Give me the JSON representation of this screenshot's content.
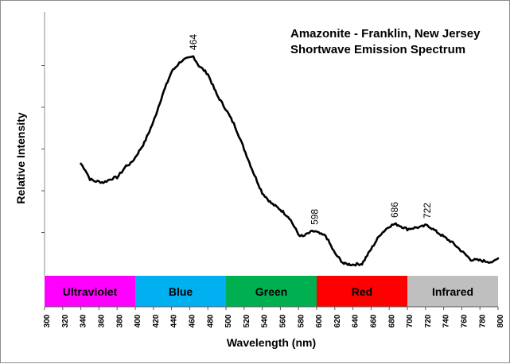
{
  "chart_data": {
    "type": "line",
    "title": "Amazonite - Franklin, New Jersey",
    "subtitle": "Shortwave Emission Spectrum",
    "xlabel": "Wavelength (nm)",
    "ylabel": "Relative Intensity",
    "xlim": [
      300,
      800
    ],
    "ylim": [
      0,
      6
    ],
    "x_ticks": [
      300,
      320,
      340,
      360,
      380,
      400,
      420,
      440,
      460,
      480,
      500,
      520,
      540,
      560,
      580,
      600,
      620,
      640,
      660,
      680,
      700,
      720,
      740,
      760,
      780,
      800
    ],
    "y_ticks": [
      1,
      2,
      3,
      4,
      5
    ],
    "y_tick_labels_shown": false,
    "grid": false,
    "legend": "none",
    "line_color": "#000000",
    "series": [
      {
        "x": [
          340,
          345,
          350,
          355,
          360,
          365,
          370,
          375,
          380,
          385,
          390,
          395,
          400,
          410,
          420,
          430,
          440,
          450,
          455,
          460,
          464,
          470,
          480,
          490,
          500,
          510,
          520,
          530,
          540,
          550,
          560,
          570,
          580,
          585,
          590,
          595,
          598,
          605,
          610,
          620,
          630,
          640,
          650,
          660,
          670,
          680,
          686,
          690,
          700,
          705,
          710,
          715,
          722,
          730,
          740,
          750,
          760,
          770,
          780,
          790,
          795,
          800
        ],
        "y": [
          2.65,
          2.5,
          2.28,
          2.23,
          2.22,
          2.2,
          2.25,
          2.3,
          2.32,
          2.45,
          2.6,
          2.65,
          2.8,
          3.15,
          3.65,
          4.3,
          4.85,
          5.1,
          5.15,
          5.18,
          5.22,
          5.0,
          4.8,
          4.3,
          3.95,
          3.55,
          3.0,
          2.45,
          1.95,
          1.7,
          1.55,
          1.35,
          0.95,
          0.9,
          0.97,
          1.02,
          1.03,
          0.95,
          0.92,
          0.5,
          0.25,
          0.23,
          0.25,
          0.6,
          0.95,
          1.15,
          1.2,
          1.18,
          1.08,
          1.1,
          1.12,
          1.13,
          1.18,
          1.05,
          0.9,
          0.75,
          0.55,
          0.35,
          0.33,
          0.3,
          0.29,
          0.38
        ]
      }
    ],
    "peak_labels": [
      {
        "x": 464,
        "y": 5.22,
        "text": "464"
      },
      {
        "x": 598,
        "y": 1.03,
        "text": "598"
      },
      {
        "x": 686,
        "y": 1.2,
        "text": "686"
      },
      {
        "x": 722,
        "y": 1.18,
        "text": "722"
      }
    ],
    "spectrum_bands": [
      {
        "label": "Ultraviolet",
        "x0": 300,
        "x1": 400,
        "color": "#ff00ff"
      },
      {
        "label": "Blue",
        "x0": 400,
        "x1": 500,
        "color": "#00b0f0"
      },
      {
        "label": "Green",
        "x0": 500,
        "x1": 600,
        "color": "#00b050"
      },
      {
        "label": "Red",
        "x0": 600,
        "x1": 700,
        "color": "#ff0000"
      },
      {
        "label": "Infrared",
        "x0": 700,
        "x1": 800,
        "color": "#bfbfbf"
      }
    ]
  }
}
